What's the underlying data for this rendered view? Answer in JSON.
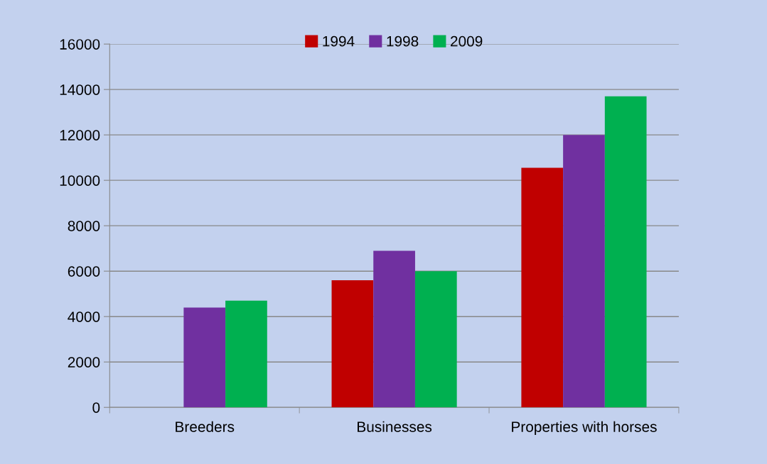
{
  "chart_data": {
    "type": "bar",
    "categories": [
      "Breeders",
      "Businesses",
      "Properties with horses"
    ],
    "series": [
      {
        "name": "1994",
        "color": "#c00000",
        "values": [
          null,
          5600,
          10550
        ]
      },
      {
        "name": "1998",
        "color": "#7030a0",
        "values": [
          4400,
          6900,
          12000
        ]
      },
      {
        "name": "2009",
        "color": "#00b050",
        "values": [
          4700,
          6000,
          13700
        ]
      }
    ],
    "ylim": [
      0,
      16000
    ],
    "yticks": [
      0,
      2000,
      4000,
      6000,
      8000,
      10000,
      12000,
      14000,
      16000
    ],
    "grid": "y",
    "legend": "top"
  }
}
